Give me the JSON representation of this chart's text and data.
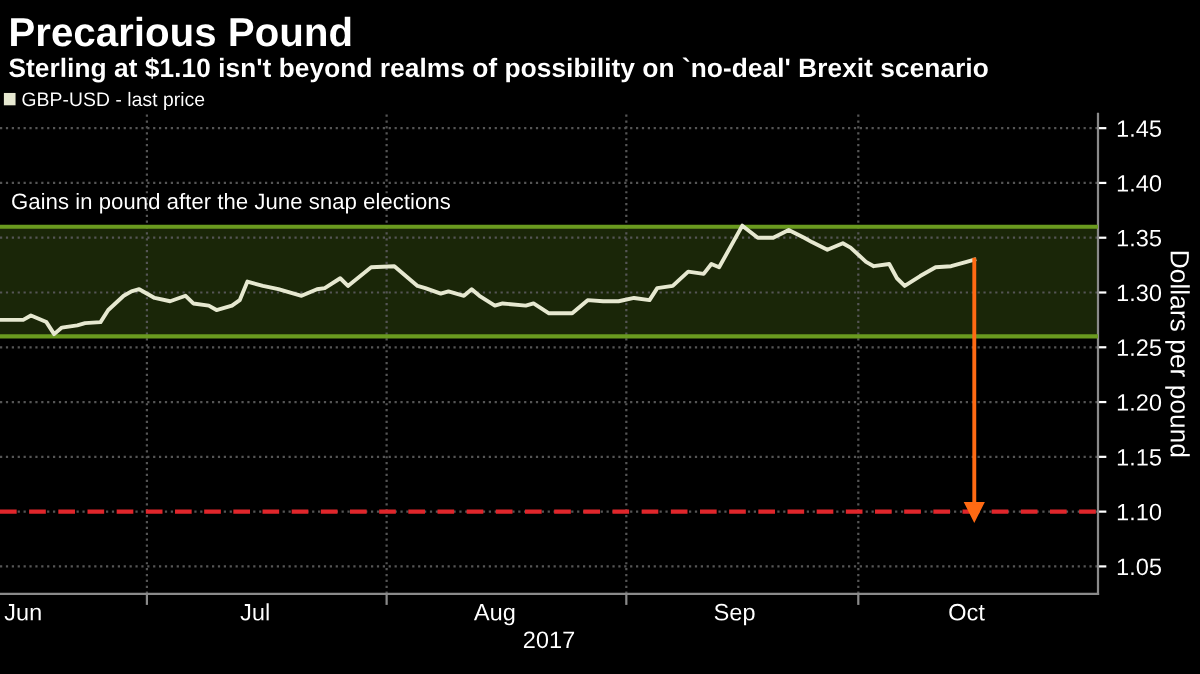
{
  "chart_data": {
    "type": "line",
    "title": "Precarious Pound",
    "subtitle": "Sterling at $1.10 isn't beyond realms of possibility on `no-deal' Brexit scenario",
    "xlabel": "2017",
    "ylabel": "Dollars per pound",
    "x": [
      "2017-06-12",
      "2017-06-15",
      "2017-06-16",
      "2017-06-18",
      "2017-06-19",
      "2017-06-20",
      "2017-06-22",
      "2017-06-23",
      "2017-06-25",
      "2017-06-26",
      "2017-06-28",
      "2017-06-29",
      "2017-06-30",
      "2017-07-02",
      "2017-07-04",
      "2017-07-06",
      "2017-07-07",
      "2017-07-09",
      "2017-07-10",
      "2017-07-12",
      "2017-07-13",
      "2017-07-14",
      "2017-07-16",
      "2017-07-18",
      "2017-07-21",
      "2017-07-23",
      "2017-07-24",
      "2017-07-26",
      "2017-07-27",
      "2017-07-30",
      "2017-08-02",
      "2017-08-05",
      "2017-08-06",
      "2017-08-08",
      "2017-08-09",
      "2017-08-11",
      "2017-08-12",
      "2017-08-13",
      "2017-08-15",
      "2017-08-16",
      "2017-08-19",
      "2017-08-20",
      "2017-08-22",
      "2017-08-25",
      "2017-08-27",
      "2017-08-29",
      "2017-08-31",
      "2017-09-02",
      "2017-09-04",
      "2017-09-05",
      "2017-09-07",
      "2017-09-09",
      "2017-09-11",
      "2017-09-12",
      "2017-09-13",
      "2017-09-16",
      "2017-09-18",
      "2017-09-20",
      "2017-09-22",
      "2017-09-24",
      "2017-09-25",
      "2017-09-27",
      "2017-09-29",
      "2017-09-30",
      "2017-10-02",
      "2017-10-03",
      "2017-10-05",
      "2017-10-06",
      "2017-10-07",
      "2017-10-09",
      "2017-10-11",
      "2017-10-13",
      "2017-10-15",
      "2017-10-16"
    ],
    "series": [
      {
        "name": "GBP-USD - last price",
        "color": "#e6e8d0",
        "values": [
          1.275,
          1.275,
          1.279,
          1.273,
          1.262,
          1.268,
          1.27,
          1.272,
          1.273,
          1.284,
          1.297,
          1.301,
          1.303,
          1.295,
          1.292,
          1.297,
          1.29,
          1.288,
          1.284,
          1.288,
          1.293,
          1.31,
          1.306,
          1.303,
          1.297,
          1.303,
          1.304,
          1.313,
          1.306,
          1.323,
          1.324,
          1.306,
          1.304,
          1.299,
          1.301,
          1.297,
          1.303,
          1.297,
          1.288,
          1.29,
          1.288,
          1.29,
          1.281,
          1.281,
          1.293,
          1.292,
          1.292,
          1.295,
          1.293,
          1.304,
          1.306,
          1.319,
          1.317,
          1.326,
          1.323,
          1.361,
          1.35,
          1.35,
          1.357,
          1.35,
          1.346,
          1.339,
          1.345,
          1.341,
          1.328,
          1.324,
          1.326,
          1.313,
          1.306,
          1.315,
          1.323,
          1.324,
          1.328,
          1.33
        ]
      },
      {
        "type": "line",
        "marker": "triangle",
        "color": "#ff6a13",
        "x": [
          "2017-10-16",
          "2017-10-16"
        ],
        "values": [
          1.33,
          1.1
        ]
      }
    ],
    "xlim": [
      "2017-06-12",
      "2017-11-01"
    ],
    "xticks": [
      {
        "value": "2017-06-15",
        "label": "Jun"
      },
      {
        "value": "2017-07-01",
        "label": null
      },
      {
        "value": "2017-07-15",
        "label": "Jul"
      },
      {
        "value": "2017-08-01",
        "label": null
      },
      {
        "value": "2017-08-15",
        "label": "Aug"
      },
      {
        "value": "2017-09-01",
        "label": null
      },
      {
        "value": "2017-09-15",
        "label": "Sep"
      },
      {
        "value": "2017-10-01",
        "label": null
      },
      {
        "value": "2017-10-15",
        "label": "Oct"
      }
    ],
    "ylim": [
      1.025,
      1.463
    ],
    "yticks": [
      {
        "value": 1.05,
        "label": "1.05"
      },
      {
        "value": 1.1,
        "label": "1.10"
      },
      {
        "value": 1.15,
        "label": "1.15"
      },
      {
        "value": 1.2,
        "label": "1.20"
      },
      {
        "value": 1.25,
        "label": "1.25"
      },
      {
        "value": 1.3,
        "label": "1.30"
      },
      {
        "value": 1.35,
        "label": "1.35"
      },
      {
        "value": 1.4,
        "label": "1.40"
      },
      {
        "value": 1.45,
        "label": "1.45"
      }
    ],
    "bands": [
      {
        "axis": "y",
        "from": 1.26,
        "to": 1.36,
        "label": "Gains in pound after the June snap elections",
        "color": "#1a2608"
      }
    ],
    "ref_lines": [
      {
        "axis": "y",
        "value": 1.1,
        "color": "#e0262b",
        "line_style": "dashed"
      },
      {
        "axis": "y",
        "value": 1.26,
        "color": "#6a9a1f",
        "line_style": "solid"
      },
      {
        "axis": "y",
        "value": 1.36,
        "color": "#6a9a1f",
        "line_style": "solid"
      }
    ],
    "grid": true,
    "legend": "top left",
    "marker": "none",
    "line_style": "solid"
  }
}
